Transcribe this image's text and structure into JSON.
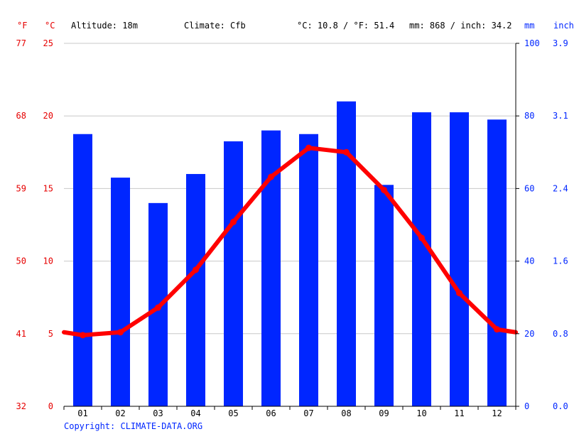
{
  "header": {
    "unit_f": "°F",
    "unit_c": "°C",
    "altitude": "Altitude: 18m",
    "climate": "Climate: Cfb",
    "avg_temp": "°C: 10.8 / °F: 51.4",
    "precip": "mm: 868 / inch: 34.2",
    "unit_mm": "mm",
    "unit_inch": "inch"
  },
  "copyright": "Copyright: CLIMATE-DATA.ORG",
  "axes": {
    "f_ticks": [
      "77",
      "68",
      "59",
      "50",
      "41",
      "32"
    ],
    "c_ticks": [
      "25",
      "20",
      "15",
      "10",
      "5",
      "0"
    ],
    "mm_ticks": [
      "100",
      "80",
      "60",
      "40",
      "20",
      "0"
    ],
    "inch_ticks": [
      "3.9",
      "3.1",
      "2.4",
      "1.6",
      "0.8",
      "0.0"
    ]
  },
  "colors": {
    "temperature": "#ff0000",
    "precipitation": "#0026ff",
    "temp_axis": "#e60000",
    "precip_axis": "#0026ff",
    "grid": "#c8c8c8"
  },
  "chart_data": {
    "type": "bar+line",
    "categories": [
      "01",
      "02",
      "03",
      "04",
      "05",
      "06",
      "07",
      "08",
      "09",
      "10",
      "11",
      "12"
    ],
    "precipitation_mm": [
      75,
      63,
      56,
      64,
      73,
      76,
      75,
      84,
      61,
      81,
      81,
      79
    ],
    "temperature_c": [
      4.9,
      5.1,
      6.8,
      9.4,
      12.7,
      15.8,
      17.8,
      17.5,
      14.9,
      11.6,
      7.8,
      5.3
    ],
    "temperature_start_c": 5.1,
    "temperature_end_c": 5.1,
    "ylim_c": [
      0,
      25
    ],
    "ylim_mm": [
      0,
      100
    ],
    "grid": true
  }
}
